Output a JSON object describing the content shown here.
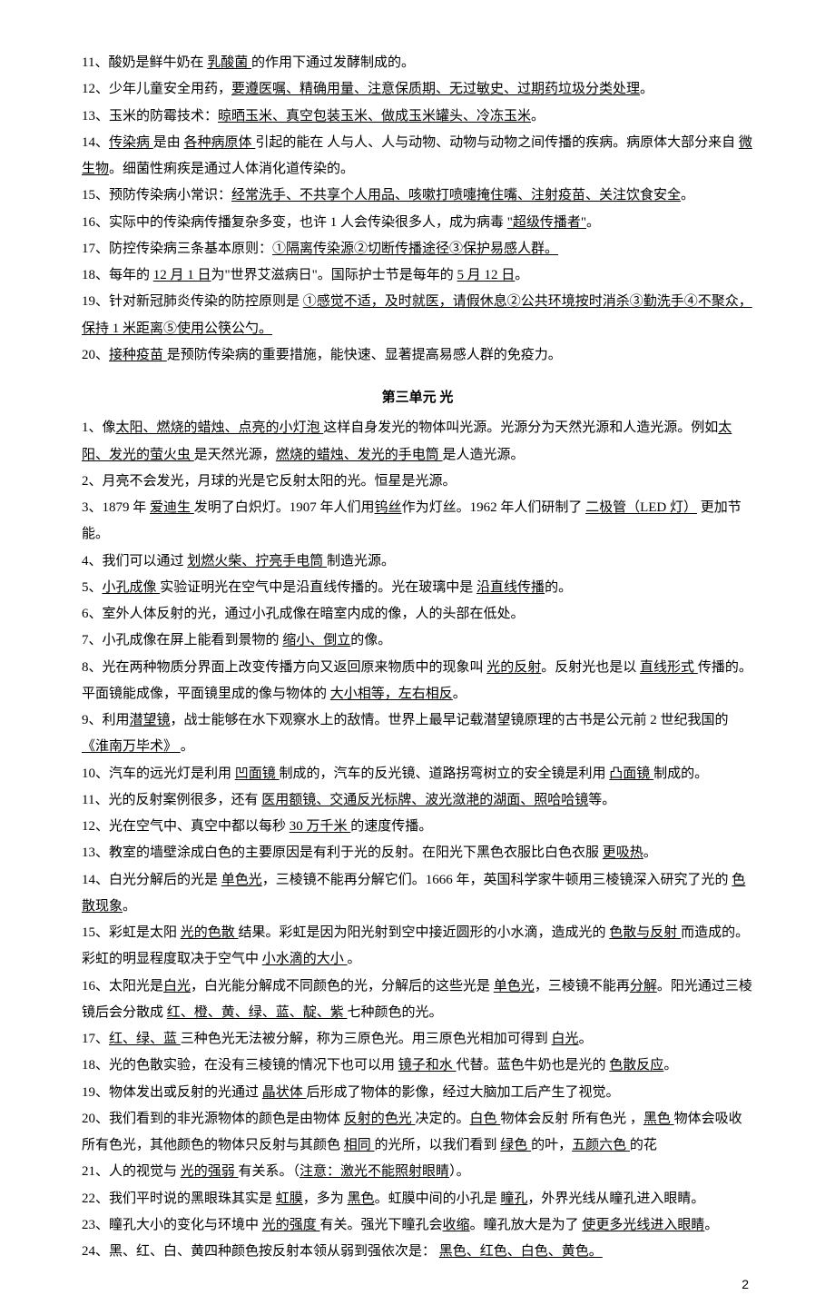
{
  "colors": {
    "text": "#000000",
    "background": "#ffffff"
  },
  "typography": {
    "font_family": "SimSun",
    "font_size_pt": 11,
    "line_height": 1.95
  },
  "page_number": "2",
  "unit_title": "第三单元 光",
  "topBlock": [
    {
      "n": "11",
      "segs": [
        {
          "t": "、酸奶是鲜牛奶在 "
        },
        {
          "t": "乳酸菌 ",
          "u": true
        },
        {
          "t": "的作用下通过发酵制成的。"
        }
      ]
    },
    {
      "n": "12",
      "segs": [
        {
          "t": "、少年儿童安全用药，"
        },
        {
          "t": "要遵医嘱、精确用量、注意保质期、无过敏史、过期药垃圾分类处理",
          "u": true
        },
        {
          "t": "。"
        }
      ]
    },
    {
      "n": "13",
      "segs": [
        {
          "t": "、玉米的防霉技术："
        },
        {
          "t": "晾晒玉米、真空包装玉米、做成玉米罐头、冷冻玉米",
          "u": true
        },
        {
          "t": "。"
        }
      ]
    },
    {
      "n": "14",
      "segs": [
        {
          "t": "、"
        },
        {
          "t": "传染病 ",
          "u": true
        },
        {
          "t": "是由 "
        },
        {
          "t": "各种病原体 ",
          "u": true
        },
        {
          "t": "引起的能在 人与人、人与动物、动物与动物之间传播的疾病。病原体大部分来自 "
        },
        {
          "t": "微生物",
          "u": true
        },
        {
          "t": "。细菌性痢疾是通过人体消化道传染的。"
        }
      ]
    },
    {
      "n": "15",
      "segs": [
        {
          "t": "、预防传染病小常识："
        },
        {
          "t": "经常洗手、不共享个人用品、咳嗽打喷嚏掩住嘴、注射疫苗、关注饮食安全",
          "u": true
        },
        {
          "t": "。"
        }
      ]
    },
    {
      "n": "16",
      "segs": [
        {
          "t": "、实际中的传染病传播复杂多变，也许 1 人会传染很多人，成为病毒 "
        },
        {
          "t": "\"超级传播者\"",
          "u": true
        },
        {
          "t": "。"
        }
      ]
    },
    {
      "n": "17",
      "segs": [
        {
          "t": "、防控传染病三条基本原则："
        },
        {
          "t": "①隔离传染源②切断传播途径③保护易感人群。",
          "u": true
        }
      ]
    },
    {
      "n": "18",
      "segs": [
        {
          "t": "、每年的 "
        },
        {
          "t": "12 月 1 日",
          "u": true
        },
        {
          "t": "为\"世界艾滋病日\"。国际护士节是每年的 "
        },
        {
          "t": "5 月 12 日",
          "u": true
        },
        {
          "t": "。"
        }
      ]
    },
    {
      "n": "19",
      "segs": [
        {
          "t": "、针对新冠肺炎传染的防控原则是 "
        },
        {
          "t": "①感觉不适，及时就医，请假休息②公共环境按时消杀③勤洗手④不聚众，保持 1 米距离⑤使用公筷公勺。",
          "u": true
        }
      ]
    },
    {
      "n": "20",
      "segs": [
        {
          "t": "、"
        },
        {
          "t": "接种疫苗 ",
          "u": true
        },
        {
          "t": "是预防传染病的重要措施，能快速、显著提高易感人群的免疫力。"
        }
      ]
    }
  ],
  "bottomBlock": [
    {
      "n": "1",
      "segs": [
        {
          "t": "、像"
        },
        {
          "t": "太阳、燃烧的蜡烛、点亮的小灯泡 ",
          "u": true
        },
        {
          "t": "这样自身发光的物体叫光源。光源分为天然光源和人造光源。例如"
        },
        {
          "t": "太阳、发光的萤火虫 ",
          "u": true
        },
        {
          "t": "是天然光源，"
        },
        {
          "t": "燃烧的蜡烛、发光的手电筒 ",
          "u": true
        },
        {
          "t": "是人造光源。"
        }
      ]
    },
    {
      "n": "2",
      "segs": [
        {
          "t": "、月亮不会发光，月球的光是它反射太阳的光。恒星是光源。"
        }
      ]
    },
    {
      "n": "3",
      "segs": [
        {
          "t": "、1879 年 "
        },
        {
          "t": "爱迪生 ",
          "u": true
        },
        {
          "t": "发明了白炽灯。1907 年人们用"
        },
        {
          "t": "钨丝",
          "u": true
        },
        {
          "t": "作为灯丝。1962 年人们研制了 "
        },
        {
          "t": "二极管（LED 灯）",
          "u": true
        },
        {
          "t": "  更加节能。"
        }
      ]
    },
    {
      "n": "4",
      "segs": [
        {
          "t": "、我们可以通过 "
        },
        {
          "t": "划燃火柴、拧亮手电筒 ",
          "u": true
        },
        {
          "t": "制造光源。"
        }
      ]
    },
    {
      "n": "5",
      "segs": [
        {
          "t": "、"
        },
        {
          "t": "小孔成像 ",
          "u": true
        },
        {
          "t": "实验证明光在空气中是沿直线传播的。光在玻璃中是 "
        },
        {
          "t": "沿直线传播",
          "u": true
        },
        {
          "t": "的。"
        }
      ]
    },
    {
      "n": "6",
      "segs": [
        {
          "t": "、室外人体反射的光，通过小孔成像在暗室内成的像，人的头部在低处。"
        }
      ]
    },
    {
      "n": "7",
      "segs": [
        {
          "t": "、小孔成像在屏上能看到景物的 "
        },
        {
          "t": "缩小、倒立",
          "u": true
        },
        {
          "t": "的像。"
        }
      ]
    },
    {
      "n": "8",
      "segs": [
        {
          "t": "、光在两种物质分界面上改变传播方向又返回原来物质中的现象叫 "
        },
        {
          "t": "光的反射",
          "u": true
        },
        {
          "t": "。反射光也是以 "
        },
        {
          "t": "直线形式 ",
          "u": true
        },
        {
          "t": "传播的。  平面镜能成像，平面镜里成的像与物体的 "
        },
        {
          "t": "大小相等，左右相反",
          "u": true
        },
        {
          "t": "。"
        }
      ]
    },
    {
      "n": "9",
      "segs": [
        {
          "t": "、利用"
        },
        {
          "t": "潜望镜",
          "u": true
        },
        {
          "t": "，战士能够在水下观察水上的敌情。世界上最早记载潜望镜原理的古书是公元前 2 世纪我国的 "
        },
        {
          "t": "《淮南万毕术》  ",
          "u": true
        },
        {
          "t": "。"
        }
      ]
    },
    {
      "n": "10",
      "segs": [
        {
          "t": "、汽车的远光灯是利用 "
        },
        {
          "t": "凹面镜 ",
          "u": true
        },
        {
          "t": "制成的，汽车的反光镜、道路拐弯树立的安全镜是利用 "
        },
        {
          "t": "凸面镜 ",
          "u": true
        },
        {
          "t": "制成的。"
        }
      ]
    },
    {
      "n": "11",
      "segs": [
        {
          "t": "、光的反射案例很多，还有 "
        },
        {
          "t": "医用额镜、交通反光标牌、波光潋滟的湖面、照哈哈镜",
          "u": true
        },
        {
          "t": "等。"
        }
      ]
    },
    {
      "n": "12",
      "segs": [
        {
          "t": "、光在空气中、真空中都以每秒 "
        },
        {
          "t": "30 万千米 ",
          "u": true
        },
        {
          "t": "的速度传播。"
        }
      ]
    },
    {
      "n": "13",
      "segs": [
        {
          "t": "、教室的墙壁涂成白色的主要原因是有利于光的反射。在阳光下黑色衣服比白色衣服 "
        },
        {
          "t": "更吸热",
          "u": true
        },
        {
          "t": "。"
        }
      ]
    },
    {
      "n": "14",
      "segs": [
        {
          "t": "、白光分解后的光是 "
        },
        {
          "t": "单色光",
          "u": true
        },
        {
          "t": "，三棱镜不能再分解它们。1666 年，英国科学家牛顿用三棱镜深入研究了光的 "
        },
        {
          "t": "色散现象",
          "u": true
        },
        {
          "t": "。"
        }
      ]
    },
    {
      "n": "15",
      "segs": [
        {
          "t": "、彩虹是太阳 "
        },
        {
          "t": "光的色散 ",
          "u": true
        },
        {
          "t": "结果。彩虹是因为阳光射到空中接近圆形的小水滴，造成光的 "
        },
        {
          "t": "色散与反射 ",
          "u": true
        },
        {
          "t": "而造成的。彩虹的明显程度取决于空气中 "
        },
        {
          "t": "小水滴的大小  ",
          "u": true
        },
        {
          "t": "。"
        }
      ]
    },
    {
      "n": "16",
      "segs": [
        {
          "t": "、太阳光是"
        },
        {
          "t": "白光",
          "u": true
        },
        {
          "t": "，白光能分解成不同颜色的光，分解后的这些光是 "
        },
        {
          "t": "单色光",
          "u": true
        },
        {
          "t": "，三棱镜不能再"
        },
        {
          "t": "分解",
          "u": true
        },
        {
          "t": "。阳光通过三棱镜后会分散成 "
        },
        {
          "t": "红、橙、黄、绿、蓝、靛、紫 ",
          "u": true
        },
        {
          "t": "七种颜色的光。"
        }
      ]
    },
    {
      "n": "17",
      "segs": [
        {
          "t": "、"
        },
        {
          "t": "红、绿、蓝 ",
          "u": true
        },
        {
          "t": "三种色光无法被分解，称为三原色光。用三原色光相加可得到 "
        },
        {
          "t": "白光",
          "u": true
        },
        {
          "t": "。"
        }
      ]
    },
    {
      "n": "18",
      "segs": [
        {
          "t": "、光的色散实验，在没有三棱镜的情况下也可以用 "
        },
        {
          "t": "镜子和水 ",
          "u": true
        },
        {
          "t": "代替。蓝色牛奶也是光的 "
        },
        {
          "t": "色散反应",
          "u": true
        },
        {
          "t": "。"
        }
      ]
    },
    {
      "n": "19",
      "segs": [
        {
          "t": "、物体发出或反射的光通过 "
        },
        {
          "t": "晶状体 ",
          "u": true
        },
        {
          "t": "后形成了物体的影像，经过大脑加工后产生了视觉。"
        }
      ]
    },
    {
      "n": "20",
      "segs": [
        {
          "t": "、我们看到的非光源物体的颜色是由物体 "
        },
        {
          "t": "反射的色光 ",
          "u": true
        },
        {
          "t": "决定的。"
        },
        {
          "t": "白色 ",
          "u": true
        },
        {
          "t": "物体会反射 所有色光 ，"
        },
        {
          "t": "黑色 ",
          "u": true
        },
        {
          "t": "物体会吸收所有色光，其他颜色的物体只反射与其颜色 "
        },
        {
          "t": "相同 ",
          "u": true
        },
        {
          "t": "的光所，以我们看到 "
        },
        {
          "t": "绿色 ",
          "u": true
        },
        {
          "t": "的叶，"
        },
        {
          "t": "五颜六色 ",
          "u": true
        },
        {
          "t": "的花"
        }
      ]
    },
    {
      "n": "21",
      "segs": [
        {
          "t": "、人的视觉与 "
        },
        {
          "t": "光的强弱 ",
          "u": true
        },
        {
          "t": "有关系。（"
        },
        {
          "t": "注意：激光不能照射眼睛",
          "u": true
        },
        {
          "t": "）。"
        }
      ]
    },
    {
      "n": "22",
      "segs": [
        {
          "t": "、我们平时说的黑眼珠其实是 "
        },
        {
          "t": "虹膜",
          "u": true
        },
        {
          "t": "，多为 "
        },
        {
          "t": "黑色",
          "u": true
        },
        {
          "t": "。虹膜中间的小孔是 "
        },
        {
          "t": "瞳孔",
          "u": true
        },
        {
          "t": "，外界光线从瞳孔进入眼睛。"
        }
      ]
    },
    {
      "n": "23",
      "segs": [
        {
          "t": "、瞳孔大小的变化与环境中 "
        },
        {
          "t": "光的强度 ",
          "u": true
        },
        {
          "t": "有关。强光下瞳孔会"
        },
        {
          "t": "收缩",
          "u": true
        },
        {
          "t": "。瞳孔放大是为了 "
        },
        {
          "t": "使更多光线进入眼睛",
          "u": true
        },
        {
          "t": "。"
        }
      ]
    },
    {
      "n": "24",
      "segs": [
        {
          "t": "、黑、红、白、黄四种颜色按反射本领从弱到强依次是： "
        },
        {
          "t": "黑色、红色、白色、黄色。",
          "u": true
        }
      ]
    }
  ]
}
